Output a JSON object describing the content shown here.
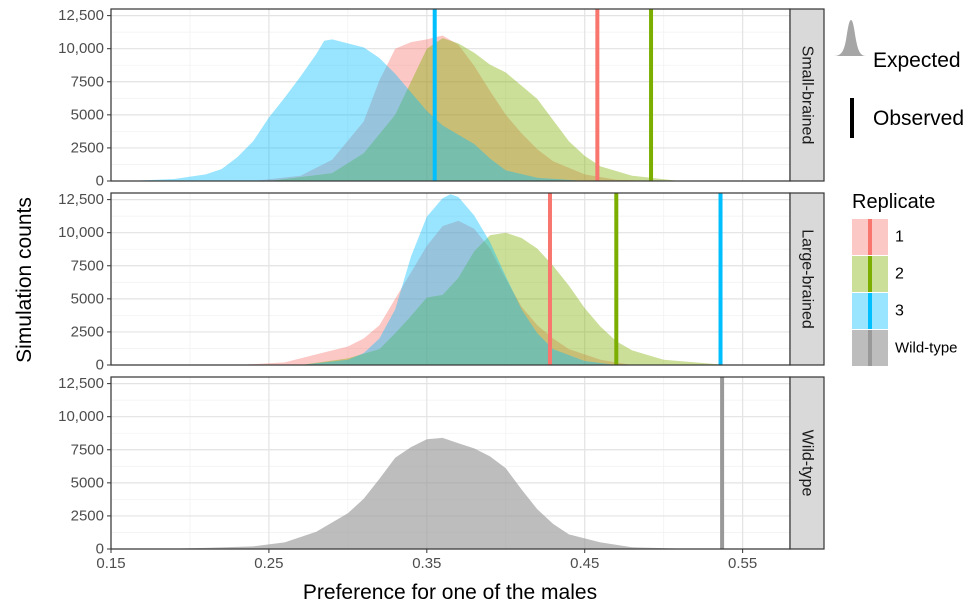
{
  "chart_data": {
    "type": "area",
    "xlabel": "Preference for one of the males",
    "ylabel": "Simulation counts",
    "xlim": [
      0.15,
      0.58
    ],
    "ylim": [
      0,
      13000
    ],
    "x_ticks": [
      "0.15",
      "0.25",
      "0.35",
      "0.45",
      "0.55"
    ],
    "x_tick_values": [
      0.15,
      0.25,
      0.35,
      0.45,
      0.55
    ],
    "y_ticks": [
      "0",
      "2500",
      "5000",
      "7500",
      "10,000",
      "12,500"
    ],
    "y_tick_values": [
      0,
      2500,
      5000,
      7500,
      10000,
      12500
    ],
    "colors": {
      "1": "#F8766D",
      "2": "#7CAE00",
      "3": "#00BFFF",
      "Wild-type": "#999999"
    },
    "panels": [
      {
        "strip": "Small-brained",
        "series": [
          {
            "name": "1",
            "values": [
              [
                0.24,
                0
              ],
              [
                0.27,
                400
              ],
              [
                0.29,
                1600
              ],
              [
                0.31,
                4500
              ],
              [
                0.32,
                7600
              ],
              [
                0.33,
                10000
              ],
              [
                0.34,
                10500
              ],
              [
                0.35,
                10700
              ],
              [
                0.36,
                11000
              ],
              [
                0.37,
                10300
              ],
              [
                0.38,
                8700
              ],
              [
                0.39,
                6800
              ],
              [
                0.4,
                5000
              ],
              [
                0.41,
                3600
              ],
              [
                0.42,
                2400
              ],
              [
                0.43,
                1500
              ],
              [
                0.45,
                500
              ],
              [
                0.47,
                100
              ],
              [
                0.5,
                0
              ]
            ]
          },
          {
            "name": "2",
            "values": [
              [
                0.25,
                0
              ],
              [
                0.29,
                600
              ],
              [
                0.31,
                2100
              ],
              [
                0.33,
                5000
              ],
              [
                0.34,
                7500
              ],
              [
                0.35,
                10000
              ],
              [
                0.36,
                10800
              ],
              [
                0.37,
                10400
              ],
              [
                0.38,
                9700
              ],
              [
                0.39,
                8800
              ],
              [
                0.4,
                8200
              ],
              [
                0.41,
                7200
              ],
              [
                0.42,
                6200
              ],
              [
                0.43,
                4600
              ],
              [
                0.44,
                3000
              ],
              [
                0.45,
                1900
              ],
              [
                0.46,
                1100
              ],
              [
                0.48,
                400
              ],
              [
                0.51,
                0
              ]
            ]
          },
          {
            "name": "3",
            "values": [
              [
                0.16,
                0
              ],
              [
                0.19,
                150
              ],
              [
                0.21,
                500
              ],
              [
                0.22,
                900
              ],
              [
                0.23,
                1800
              ],
              [
                0.24,
                3000
              ],
              [
                0.25,
                4800
              ],
              [
                0.26,
                6300
              ],
              [
                0.27,
                7900
              ],
              [
                0.28,
                9600
              ],
              [
                0.285,
                10600
              ],
              [
                0.29,
                10700
              ],
              [
                0.3,
                10400
              ],
              [
                0.31,
                10100
              ],
              [
                0.32,
                9300
              ],
              [
                0.33,
                8100
              ],
              [
                0.34,
                6700
              ],
              [
                0.35,
                5300
              ],
              [
                0.36,
                4200
              ],
              [
                0.37,
                3500
              ],
              [
                0.38,
                2800
              ],
              [
                0.39,
                1700
              ],
              [
                0.4,
                800
              ],
              [
                0.42,
                250
              ],
              [
                0.45,
                0
              ]
            ]
          }
        ],
        "observed": [
          {
            "name": "1",
            "x": 0.458
          },
          {
            "name": "2",
            "x": 0.492
          },
          {
            "name": "3",
            "x": 0.355
          }
        ]
      },
      {
        "strip": "Large-brained",
        "series": [
          {
            "name": "1",
            "values": [
              [
                0.23,
                0
              ],
              [
                0.26,
                200
              ],
              [
                0.28,
                800
              ],
              [
                0.3,
                1400
              ],
              [
                0.31,
                2000
              ],
              [
                0.32,
                3000
              ],
              [
                0.33,
                5000
              ],
              [
                0.34,
                7000
              ],
              [
                0.35,
                9000
              ],
              [
                0.36,
                10500
              ],
              [
                0.37,
                10900
              ],
              [
                0.38,
                10300
              ],
              [
                0.39,
                8800
              ],
              [
                0.4,
                6500
              ],
              [
                0.41,
                4400
              ],
              [
                0.42,
                3000
              ],
              [
                0.43,
                2000
              ],
              [
                0.44,
                1200
              ],
              [
                0.46,
                400
              ],
              [
                0.48,
                0
              ]
            ]
          },
          {
            "name": "2",
            "values": [
              [
                0.27,
                0
              ],
              [
                0.3,
                500
              ],
              [
                0.32,
                1200
              ],
              [
                0.33,
                2400
              ],
              [
                0.34,
                3700
              ],
              [
                0.35,
                5100
              ],
              [
                0.36,
                5300
              ],
              [
                0.37,
                6600
              ],
              [
                0.38,
                8600
              ],
              [
                0.39,
                9800
              ],
              [
                0.4,
                10000
              ],
              [
                0.41,
                9600
              ],
              [
                0.42,
                8800
              ],
              [
                0.43,
                7500
              ],
              [
                0.44,
                6000
              ],
              [
                0.45,
                4300
              ],
              [
                0.46,
                2900
              ],
              [
                0.47,
                1800
              ],
              [
                0.48,
                1100
              ],
              [
                0.5,
                400
              ],
              [
                0.54,
                0
              ]
            ]
          },
          {
            "name": "3",
            "values": [
              [
                0.27,
                0
              ],
              [
                0.3,
                400
              ],
              [
                0.31,
                900
              ],
              [
                0.32,
                2000
              ],
              [
                0.33,
                4200
              ],
              [
                0.34,
                8200
              ],
              [
                0.35,
                11200
              ],
              [
                0.36,
                12600
              ],
              [
                0.365,
                12900
              ],
              [
                0.37,
                12700
              ],
              [
                0.38,
                11300
              ],
              [
                0.39,
                9300
              ],
              [
                0.4,
                6700
              ],
              [
                0.41,
                4200
              ],
              [
                0.42,
                2400
              ],
              [
                0.43,
                1200
              ],
              [
                0.45,
                300
              ],
              [
                0.47,
                0
              ]
            ]
          }
        ],
        "observed": [
          {
            "name": "1",
            "x": 0.428
          },
          {
            "name": "2",
            "x": 0.47
          },
          {
            "name": "3",
            "x": 0.536
          }
        ]
      },
      {
        "strip": "Wild-type",
        "series": [
          {
            "name": "Wild-type",
            "values": [
              [
                0.18,
                0
              ],
              [
                0.21,
                80
              ],
              [
                0.24,
                200
              ],
              [
                0.26,
                500
              ],
              [
                0.28,
                1300
              ],
              [
                0.29,
                2000
              ],
              [
                0.3,
                2700
              ],
              [
                0.31,
                3800
              ],
              [
                0.32,
                5300
              ],
              [
                0.33,
                6900
              ],
              [
                0.34,
                7700
              ],
              [
                0.35,
                8300
              ],
              [
                0.36,
                8400
              ],
              [
                0.37,
                8000
              ],
              [
                0.38,
                7600
              ],
              [
                0.39,
                7000
              ],
              [
                0.4,
                6100
              ],
              [
                0.41,
                4500
              ],
              [
                0.42,
                3000
              ],
              [
                0.43,
                1900
              ],
              [
                0.44,
                1100
              ],
              [
                0.46,
                500
              ],
              [
                0.48,
                130
              ],
              [
                0.52,
                0
              ]
            ]
          }
        ],
        "observed": [
          {
            "name": "Wild-type",
            "x": 0.537
          }
        ]
      }
    ],
    "legend": {
      "shape_title": "",
      "shape_items": [
        {
          "label": "Expected",
          "icon": "density-shape-icon"
        },
        {
          "label": "Observed",
          "icon": "vertical-line-icon"
        }
      ],
      "title": "Replicate",
      "items": [
        "1",
        "2",
        "3",
        "Wild-type"
      ],
      "placement": "right"
    }
  }
}
